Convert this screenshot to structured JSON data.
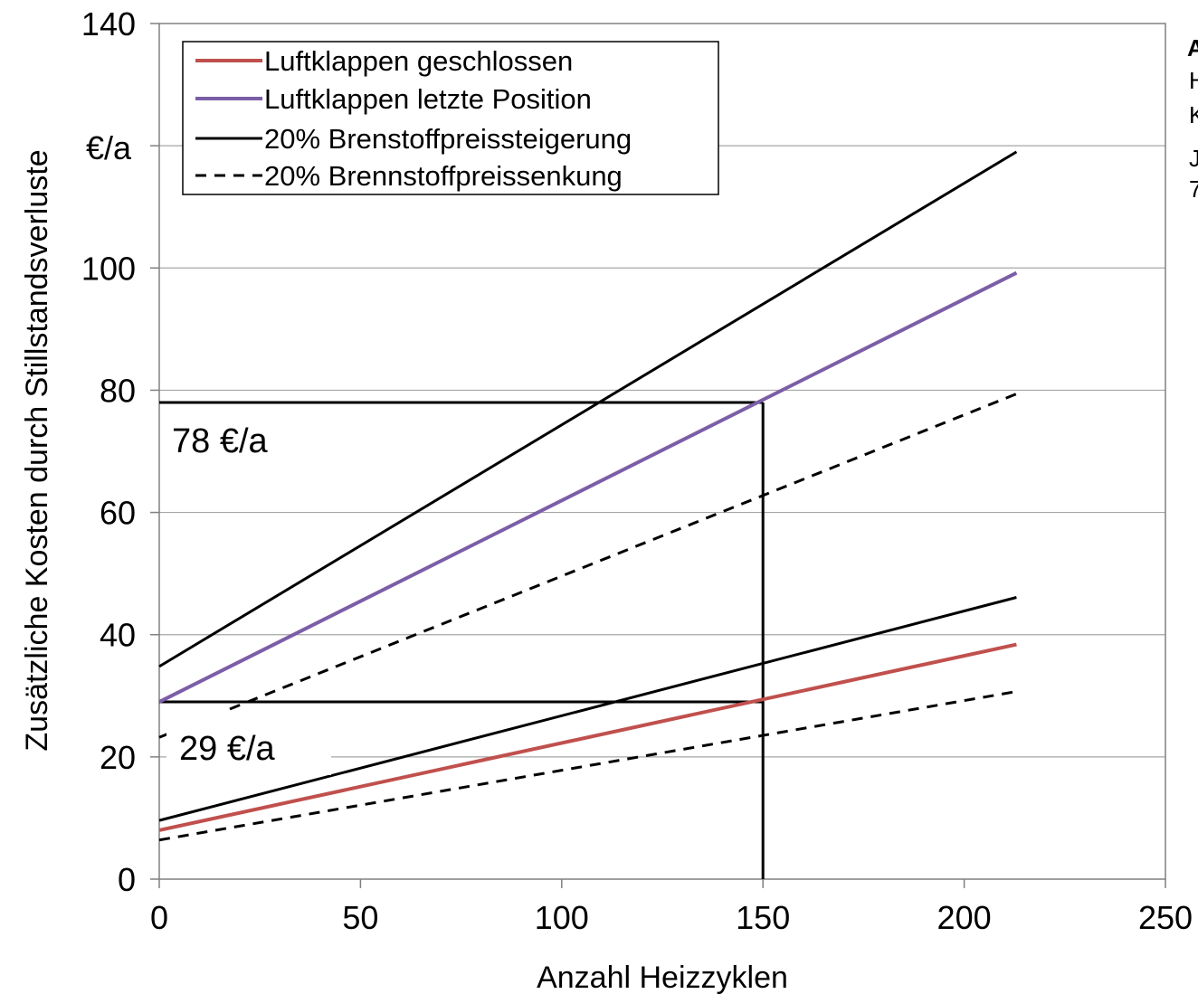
{
  "chart_data": {
    "type": "line",
    "xlabel": "Anzahl Heizzyklen",
    "ylabel": "Zusätzliche Kosten durch Stillstandsverluste",
    "xlim": [
      0,
      250
    ],
    "ylim": [
      0,
      140
    ],
    "x_ticks": [
      "0",
      "50",
      "100",
      "150",
      "200",
      "250"
    ],
    "y_ticks": [
      "0",
      "20",
      "40",
      "60",
      "80",
      "100",
      "140"
    ],
    "y_partial_label": "€/a",
    "grid": "horizontal",
    "legend_position": "top-left",
    "series": [
      {
        "name": "Luftklappen geschlossen",
        "color": "#c0504d",
        "style": "solid",
        "x": [
          0,
          213
        ],
        "y": [
          8.0,
          38.4
        ]
      },
      {
        "name": "Luftklappen letzte Position",
        "color": "#7b5ea7",
        "style": "solid",
        "x": [
          0,
          213
        ],
        "y": [
          29.0,
          99.2
        ]
      },
      {
        "name": "20% Brenstoffpreissteigerung",
        "color": "#000000",
        "style": "solid",
        "x": [
          0,
          213
        ],
        "y": [
          34.8,
          119.0
        ]
      },
      {
        "name": "",
        "color": "#000000",
        "style": "solid",
        "x": [
          0,
          213
        ],
        "y": [
          9.6,
          46.1
        ]
      },
      {
        "name": "20% Brennstoffpreissenkung",
        "color": "#000000",
        "style": "dashed",
        "x": [
          0,
          213
        ],
        "y": [
          23.2,
          79.4
        ]
      },
      {
        "name": "",
        "color": "#000000",
        "style": "dashed",
        "x": [
          0,
          213
        ],
        "y": [
          6.4,
          30.7
        ]
      }
    ],
    "reference_lines": [
      {
        "y": 78,
        "x_to": 150,
        "label": "78 €/a"
      },
      {
        "y": 29,
        "x_to": 150,
        "label": "29 €/a"
      }
    ],
    "vertical_reference": {
      "x": 150,
      "y_to": 78
    }
  },
  "side_text": [
    "A",
    "H",
    "K",
    "J",
    "7"
  ]
}
